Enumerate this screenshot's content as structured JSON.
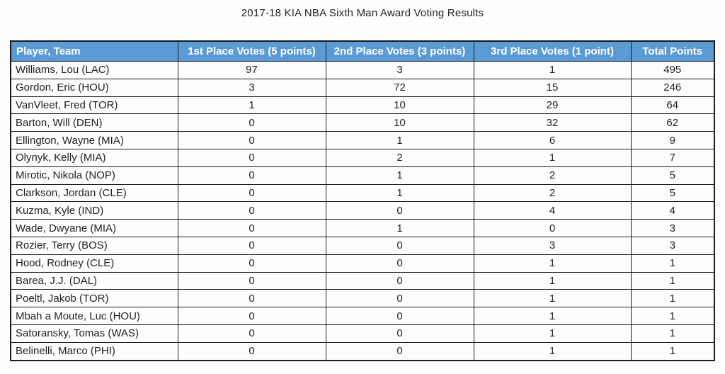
{
  "title": "2017-18 KIA NBA Sixth Man Award Voting Results",
  "colors": {
    "header_bg": "#5b9bd5",
    "header_text": "#ffffff",
    "border": "#1a1a1a",
    "body_text": "#1f1f1f",
    "page_bg": "#fdfdfd"
  },
  "table": {
    "columns": [
      "Player, Team",
      "1st Place Votes (5 points)",
      "2nd Place Votes (3 points)",
      "3rd Place Votes (1 point)",
      "Total Points"
    ],
    "rows": [
      [
        "Williams, Lou (LAC)",
        "97",
        "3",
        "1",
        "495"
      ],
      [
        "Gordon, Eric (HOU)",
        "3",
        "72",
        "15",
        "246"
      ],
      [
        "VanVleet, Fred (TOR)",
        "1",
        "10",
        "29",
        "64"
      ],
      [
        "Barton, Will (DEN)",
        "0",
        "10",
        "32",
        "62"
      ],
      [
        "Ellington, Wayne (MIA)",
        "0",
        "1",
        "6",
        "9"
      ],
      [
        "Olynyk, Kelly (MIA)",
        "0",
        "2",
        "1",
        "7"
      ],
      [
        "Mirotic, Nikola (NOP)",
        "0",
        "1",
        "2",
        "5"
      ],
      [
        "Clarkson, Jordan (CLE)",
        "0",
        "1",
        "2",
        "5"
      ],
      [
        "Kuzma, Kyle (IND)",
        "0",
        "0",
        "4",
        "4"
      ],
      [
        "Wade, Dwyane (MIA)",
        "0",
        "1",
        "0",
        "3"
      ],
      [
        "Rozier, Terry (BOS)",
        "0",
        "0",
        "3",
        "3"
      ],
      [
        "Hood, Rodney (CLE)",
        "0",
        "0",
        "1",
        "1"
      ],
      [
        "Barea, J.J. (DAL)",
        "0",
        "0",
        "1",
        "1"
      ],
      [
        "Poeltl, Jakob (TOR)",
        "0",
        "0",
        "1",
        "1"
      ],
      [
        "Mbah a Moute, Luc (HOU)",
        "0",
        "0",
        "1",
        "1"
      ],
      [
        "Satoransky, Tomas (WAS)",
        "0",
        "0",
        "1",
        "1"
      ],
      [
        "Belinelli, Marco (PHI)",
        "0",
        "0",
        "1",
        "1"
      ]
    ]
  }
}
